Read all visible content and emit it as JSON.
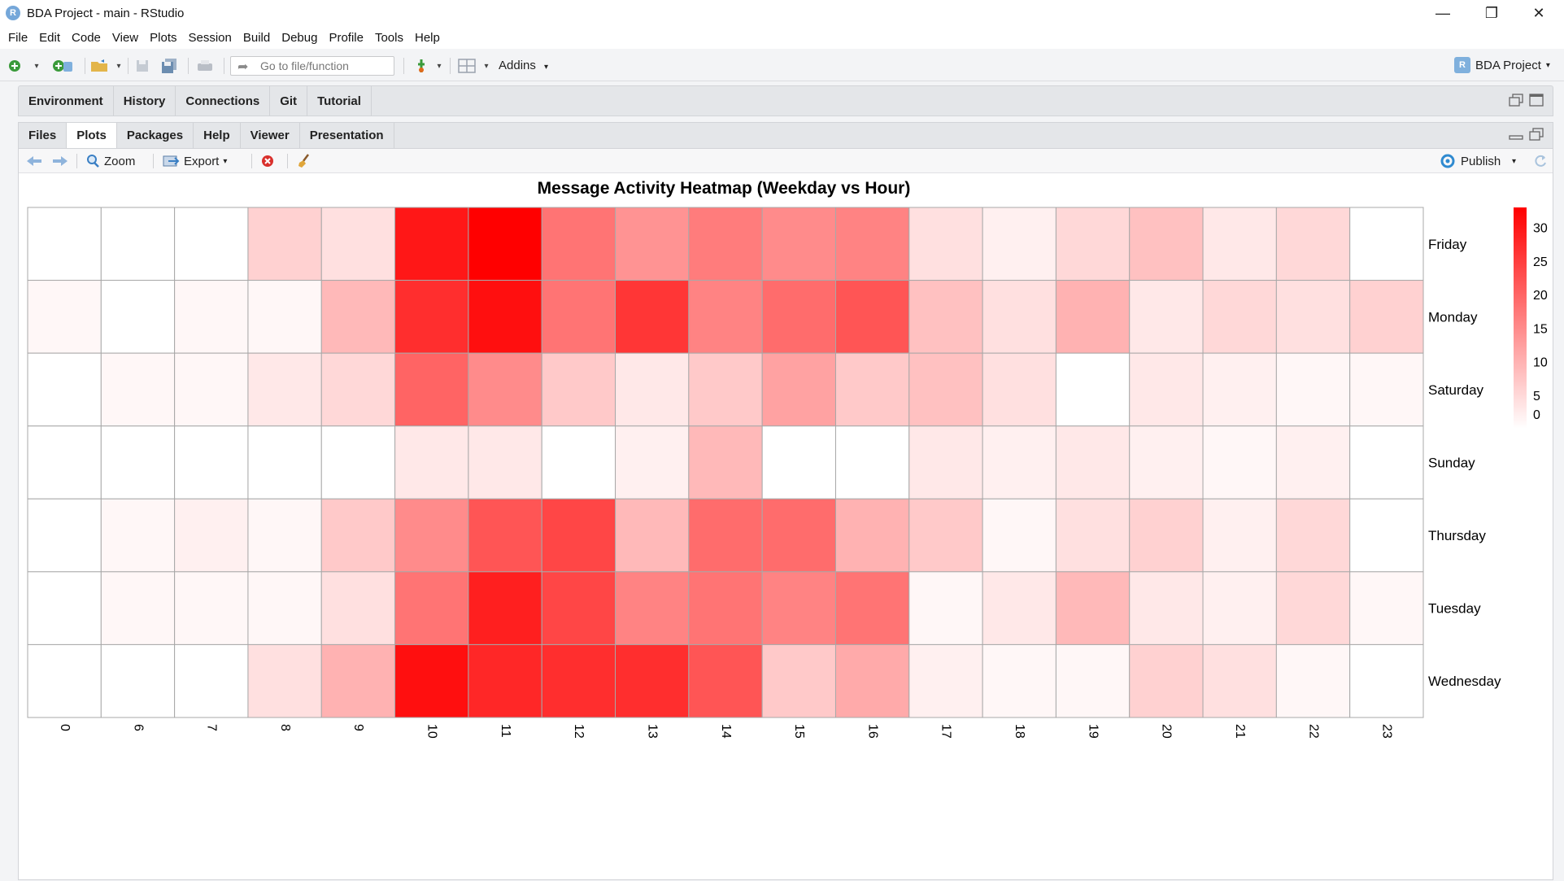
{
  "window": {
    "title": "BDA Project - main - RStudio",
    "logo_letter": "R",
    "controls": {
      "minimize": "—",
      "restore": "❐",
      "close": "✕"
    }
  },
  "menu": [
    "File",
    "Edit",
    "Code",
    "View",
    "Plots",
    "Session",
    "Build",
    "Debug",
    "Profile",
    "Tools",
    "Help"
  ],
  "toolbar": {
    "goto_placeholder": "Go to file/function",
    "addins_label": "Addins",
    "project_label": "BDA Project"
  },
  "top_pane": {
    "tabs": [
      "Environment",
      "History",
      "Connections",
      "Git",
      "Tutorial"
    ]
  },
  "plots_pane": {
    "tabs": [
      "Files",
      "Plots",
      "Packages",
      "Help",
      "Viewer",
      "Presentation"
    ],
    "active_tab": "Plots",
    "zoom_label": "Zoom",
    "export_label": "Export",
    "publish_label": "Publish"
  },
  "chart_data": {
    "type": "heatmap",
    "title": "Message Activity Heatmap (Weekday vs Hour)",
    "x_categories": [
      "0",
      "6",
      "7",
      "8",
      "9",
      "10",
      "11",
      "12",
      "13",
      "14",
      "15",
      "16",
      "17",
      "18",
      "19",
      "20",
      "21",
      "22",
      "23"
    ],
    "y_categories": [
      "Friday",
      "Monday",
      "Saturday",
      "Sunday",
      "Thursday",
      "Tuesday",
      "Wednesday"
    ],
    "values": [
      [
        0,
        0,
        0,
        6,
        4,
        30,
        33,
        18,
        14,
        17,
        15,
        16,
        4,
        2,
        5,
        8,
        3,
        5,
        0
      ],
      [
        1,
        0,
        1,
        1,
        9,
        27,
        31,
        18,
        26,
        16,
        19,
        22,
        8,
        4,
        10,
        3,
        5,
        4,
        6
      ],
      [
        0,
        1,
        1,
        3,
        5,
        20,
        15,
        7,
        3,
        7,
        12,
        7,
        8,
        4,
        0,
        3,
        2,
        1,
        1
      ],
      [
        0,
        0,
        0,
        0,
        0,
        3,
        3,
        0,
        2,
        9,
        0,
        0,
        3,
        2,
        3,
        2,
        1,
        2,
        0
      ],
      [
        0,
        1,
        2,
        1,
        7,
        15,
        22,
        24,
        9,
        19,
        19,
        10,
        7,
        1,
        4,
        6,
        2,
        5,
        0
      ],
      [
        0,
        1,
        1,
        1,
        4,
        18,
        29,
        24,
        16,
        18,
        16,
        18,
        1,
        3,
        9,
        3,
        2,
        5,
        1
      ],
      [
        0,
        0,
        0,
        4,
        10,
        31,
        28,
        27,
        27,
        22,
        7,
        11,
        2,
        1,
        1,
        6,
        4,
        1,
        0
      ]
    ],
    "colorbar": {
      "min": 0,
      "max": 33,
      "ticks": [
        "0",
        "5",
        "10",
        "15",
        "20",
        "25",
        "30"
      ]
    },
    "colors": {
      "low": "#ffffff",
      "high": "#ff0000"
    },
    "legend_position": "right"
  }
}
